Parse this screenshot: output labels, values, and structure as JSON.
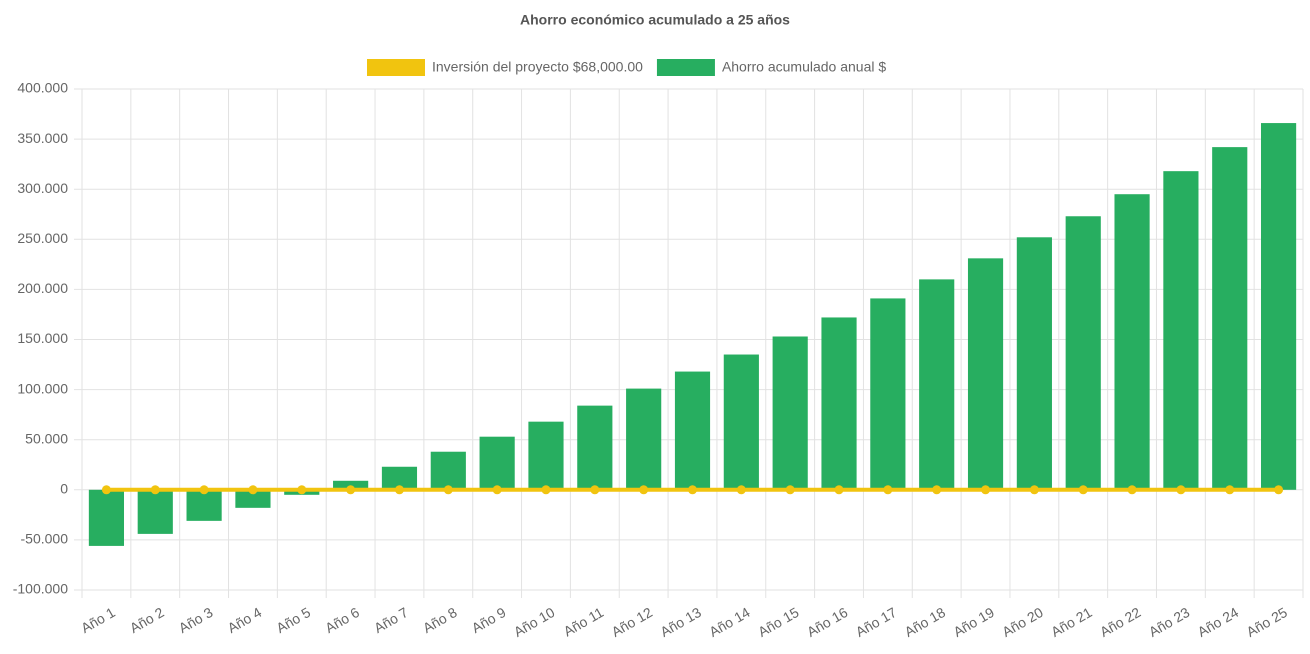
{
  "chart_data": {
    "type": "bar",
    "title": "Ahorro económico acumulado a 25 años",
    "categories": [
      "Año 1",
      "Año 2",
      "Año 3",
      "Año 4",
      "Año 5",
      "Año 6",
      "Año 7",
      "Año 8",
      "Año 9",
      "Año 10",
      "Año 11",
      "Año 12",
      "Año 13",
      "Año 14",
      "Año 15",
      "Año 16",
      "Año 17",
      "Año 18",
      "Año 19",
      "Año 20",
      "Año 21",
      "Año 22",
      "Año 23",
      "Año 24",
      "Año 25"
    ],
    "series": [
      {
        "name": "Inversión del proyecto $68,000.00",
        "type": "line",
        "color": "#f1c40f",
        "values": [
          0,
          0,
          0,
          0,
          0,
          0,
          0,
          0,
          0,
          0,
          0,
          0,
          0,
          0,
          0,
          0,
          0,
          0,
          0,
          0,
          0,
          0,
          0,
          0,
          0
        ]
      },
      {
        "name": "Ahorro acumulado anual $",
        "type": "bar",
        "color": "#27ae60",
        "values": [
          -56000,
          -44000,
          -31000,
          -18000,
          -5000,
          9000,
          23000,
          38000,
          53000,
          68000,
          84000,
          101000,
          118000,
          135000,
          153000,
          172000,
          191000,
          210000,
          231000,
          252000,
          273000,
          295000,
          318000,
          342000,
          366000
        ]
      }
    ],
    "ylim": [
      -100000,
      400000
    ],
    "yticks": [
      {
        "value": -100000,
        "label": "-100.000"
      },
      {
        "value": -50000,
        "label": "-50.000"
      },
      0,
      {
        "value": 50000,
        "label": "50.000"
      },
      {
        "value": 100000,
        "label": "100.000"
      },
      {
        "value": 150000,
        "label": "150.000"
      },
      {
        "value": 200000,
        "label": "200.000"
      },
      {
        "value": 250000,
        "label": "250.000"
      },
      {
        "value": 300000,
        "label": "300.000"
      },
      {
        "value": 350000,
        "label": "350.000"
      },
      {
        "value": 400000,
        "label": "400.000"
      }
    ],
    "grid": true
  }
}
